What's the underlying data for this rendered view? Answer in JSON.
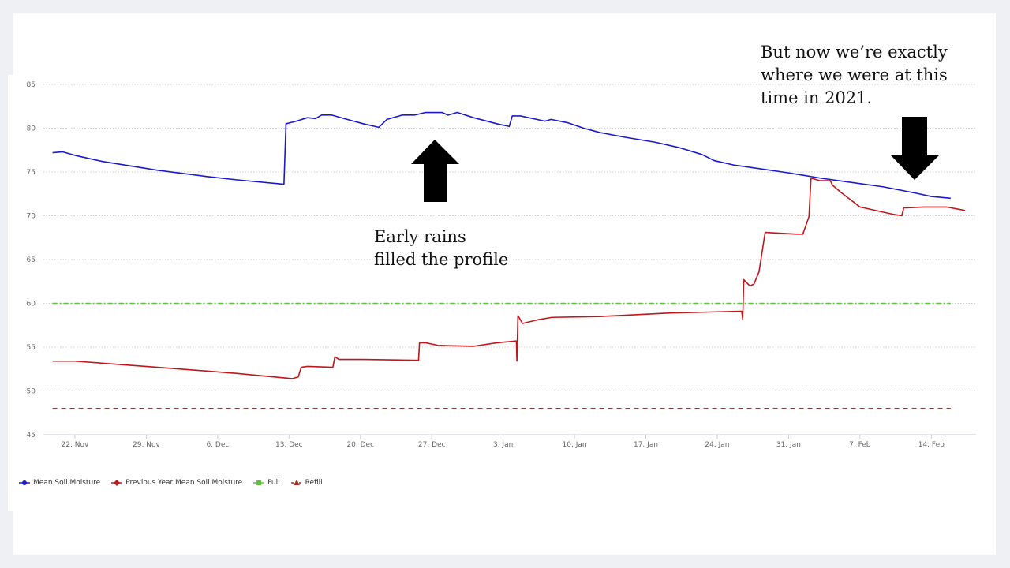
{
  "annotations": {
    "left": [
      "Early rains",
      "filled the profile"
    ],
    "right": [
      "But now we’re exactly",
      "where we were at this",
      "time in 2021."
    ]
  },
  "chart_data": {
    "type": "line",
    "title": "",
    "xlabel": "",
    "ylabel": "",
    "x_unit": "days since 22. Nov",
    "xlim": [
      -3,
      89
    ],
    "ylim": [
      45,
      85
    ],
    "yticks": [
      45,
      50,
      55,
      60,
      65,
      70,
      75,
      80,
      85
    ],
    "xticks": [
      {
        "day": 0,
        "label": "22. Nov"
      },
      {
        "day": 7,
        "label": "29. Nov"
      },
      {
        "day": 14,
        "label": "6. Dec"
      },
      {
        "day": 21,
        "label": "13. Dec"
      },
      {
        "day": 28,
        "label": "20. Dec"
      },
      {
        "day": 35,
        "label": "27. Dec"
      },
      {
        "day": 42,
        "label": "3. Jan"
      },
      {
        "day": 49,
        "label": "10. Jan"
      },
      {
        "day": 56,
        "label": "17. Jan"
      },
      {
        "day": 63,
        "label": "24. Jan"
      },
      {
        "day": 70,
        "label": "31. Jan"
      },
      {
        "day": 77,
        "label": "7. Feb"
      },
      {
        "day": 84,
        "label": "14. Feb"
      }
    ],
    "grid": true,
    "legend_position": "bottom-left",
    "series": [
      {
        "name": "Mean Soil Moisture",
        "color": "#1a1acc",
        "style": "solid",
        "marker": "circle",
        "points": [
          [
            -2.2,
            77.2
          ],
          [
            -1.2,
            77.3
          ],
          [
            0,
            76.9
          ],
          [
            2.7,
            76.2
          ],
          [
            8.1,
            75.2
          ],
          [
            12.8,
            74.5
          ],
          [
            15.9,
            74.1
          ],
          [
            20.5,
            73.6
          ],
          [
            20.7,
            80.5
          ],
          [
            21.7,
            80.8
          ],
          [
            22.8,
            81.2
          ],
          [
            23.6,
            81.1
          ],
          [
            24.2,
            81.5
          ],
          [
            25.2,
            81.5
          ],
          [
            26.7,
            81.0
          ],
          [
            28.3,
            80.5
          ],
          [
            29.8,
            80.1
          ],
          [
            30.6,
            81.0
          ],
          [
            32.1,
            81.5
          ],
          [
            33.3,
            81.5
          ],
          [
            34.4,
            81.8
          ],
          [
            36.0,
            81.8
          ],
          [
            36.6,
            81.5
          ],
          [
            37.5,
            81.8
          ],
          [
            39.1,
            81.2
          ],
          [
            41.4,
            80.5
          ],
          [
            42.6,
            80.2
          ],
          [
            42.9,
            81.4
          ],
          [
            43.7,
            81.4
          ],
          [
            46.1,
            80.8
          ],
          [
            46.7,
            81.0
          ],
          [
            48.4,
            80.6
          ],
          [
            49.9,
            80.0
          ],
          [
            51.5,
            79.5
          ],
          [
            53.8,
            79.0
          ],
          [
            56.9,
            78.4
          ],
          [
            59.2,
            77.8
          ],
          [
            61.5,
            77.0
          ],
          [
            62.7,
            76.3
          ],
          [
            64.6,
            75.8
          ],
          [
            67.0,
            75.4
          ],
          [
            70.0,
            74.9
          ],
          [
            73.1,
            74.3
          ],
          [
            76.2,
            73.8
          ],
          [
            79.3,
            73.3
          ],
          [
            82.4,
            72.6
          ],
          [
            84.0,
            72.2
          ],
          [
            85.9,
            72.0
          ]
        ]
      },
      {
        "name": "Previous Year Mean Soil Moisture",
        "color": "#c0161c",
        "style": "solid",
        "marker": "diamond",
        "points": [
          [
            -2.2,
            53.4
          ],
          [
            0,
            53.4
          ],
          [
            8.1,
            52.7
          ],
          [
            15.9,
            52.0
          ],
          [
            21.3,
            51.4
          ],
          [
            21.9,
            51.6
          ],
          [
            22.2,
            52.7
          ],
          [
            22.8,
            52.8
          ],
          [
            25.3,
            52.7
          ],
          [
            25.5,
            53.9
          ],
          [
            25.9,
            53.6
          ],
          [
            28.3,
            53.6
          ],
          [
            33.7,
            53.5
          ],
          [
            33.8,
            55.5
          ],
          [
            34.4,
            55.5
          ],
          [
            35.6,
            55.2
          ],
          [
            39.1,
            55.1
          ],
          [
            41.4,
            55.5
          ],
          [
            43.3,
            55.7
          ],
          [
            43.35,
            53.4
          ],
          [
            43.45,
            58.6
          ],
          [
            43.9,
            57.7
          ],
          [
            45.3,
            58.1
          ],
          [
            46.8,
            58.4
          ],
          [
            51.5,
            58.5
          ],
          [
            58.4,
            58.9
          ],
          [
            65.4,
            59.1
          ],
          [
            65.5,
            58.2
          ],
          [
            65.6,
            62.7
          ],
          [
            66.2,
            62.0
          ],
          [
            66.6,
            62.2
          ],
          [
            67.1,
            63.6
          ],
          [
            67.7,
            68.1
          ],
          [
            70.8,
            67.9
          ],
          [
            71.4,
            67.9
          ],
          [
            72.0,
            69.9
          ],
          [
            72.2,
            74.3
          ],
          [
            73.1,
            74.0
          ],
          [
            74.1,
            74.0
          ],
          [
            74.3,
            73.5
          ],
          [
            75.1,
            72.7
          ],
          [
            77.0,
            71.0
          ],
          [
            80.1,
            70.2
          ],
          [
            81.1,
            70.0
          ],
          [
            81.3,
            70.9
          ],
          [
            81.6,
            70.9
          ],
          [
            83.2,
            71.0
          ],
          [
            85.5,
            71.0
          ],
          [
            87.3,
            70.6
          ]
        ]
      },
      {
        "name": "Full",
        "color": "#5cc43a",
        "style": "dashdot",
        "marker": "square",
        "points": [
          [
            -2.2,
            60
          ],
          [
            85.9,
            60
          ]
        ]
      },
      {
        "name": "Refill",
        "color": "#b02a2a",
        "style": "dash",
        "marker": "triangle",
        "points": [
          [
            -2.2,
            48
          ],
          [
            85.9,
            48
          ]
        ]
      }
    ]
  }
}
